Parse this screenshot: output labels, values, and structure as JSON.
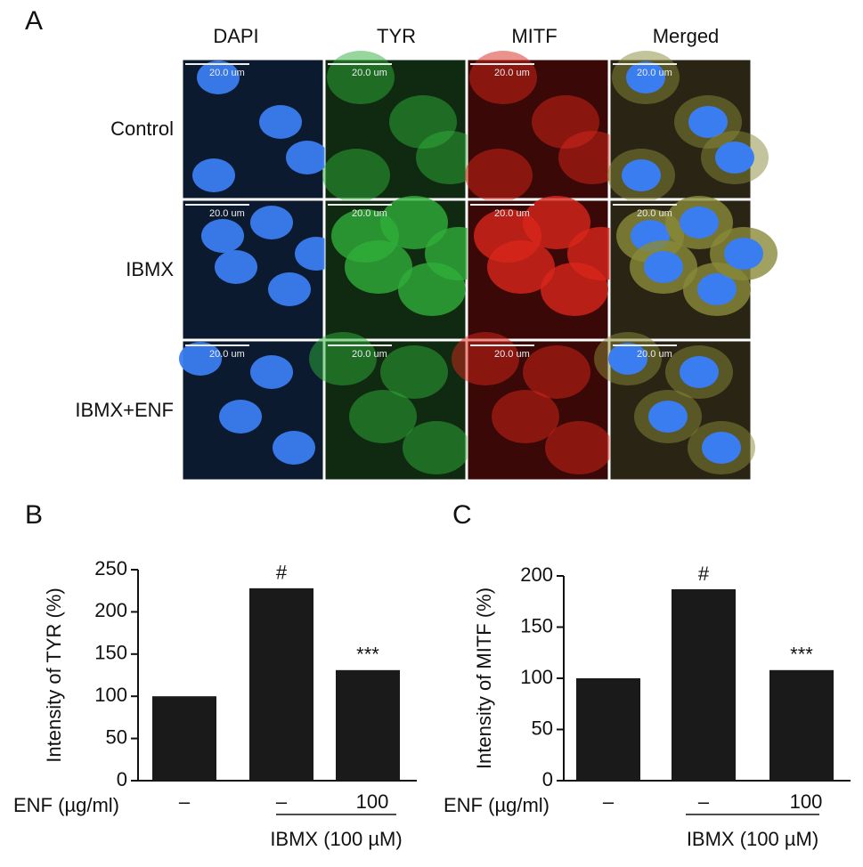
{
  "panel_a": {
    "letter": "A",
    "columns": [
      "DAPI",
      "TYR",
      "MITF",
      "Merged"
    ],
    "rows": [
      "Control",
      "IBMX",
      "IBMX+ENF"
    ],
    "scale_bar_label": "20.0 um"
  },
  "chart_data": [
    {
      "type": "bar",
      "letter": "B",
      "y_label": "Intensity of TYR (%)",
      "categories": [
        "–",
        "–",
        "100"
      ],
      "category_label": "ENF (µg/ml)",
      "group_label": "IBMX (100 µM)",
      "values": [
        100,
        228,
        131
      ],
      "bar_annotations": [
        null,
        "#",
        "***"
      ],
      "color": "#1a1a1a",
      "ylim": [
        0,
        250
      ],
      "yticks": [
        0,
        50,
        100,
        150,
        200,
        250
      ]
    },
    {
      "type": "bar",
      "letter": "C",
      "y_label": "Intensity of MITF (%)",
      "categories": [
        "–",
        "–",
        "100"
      ],
      "category_label": "ENF (µg/ml)",
      "group_label": "IBMX (100 µM)",
      "values": [
        100,
        187,
        108
      ],
      "bar_annotations": [
        null,
        "#",
        "***"
      ],
      "color": "#1a1a1a",
      "ylim": [
        0,
        200
      ],
      "yticks": [
        0,
        50,
        100,
        150,
        200
      ]
    }
  ]
}
